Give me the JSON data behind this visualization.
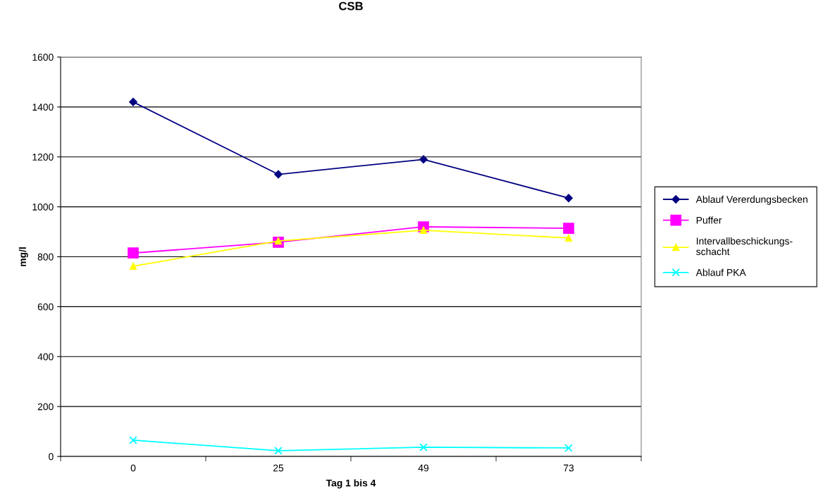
{
  "chart_data": {
    "type": "line",
    "title": "CSB",
    "xlabel": "Tag 1 bis 4",
    "ylabel": "mg/l",
    "categories": [
      "0",
      "25",
      "49",
      "73"
    ],
    "series": [
      {
        "name": "Ablauf Vererdungsbecken",
        "color": "#000080",
        "marker": "diamond",
        "values": [
          1420,
          1130,
          1190,
          1035
        ]
      },
      {
        "name": "Puffer",
        "color": "#ff00ff",
        "marker": "square",
        "values": [
          815,
          858,
          920,
          914
        ]
      },
      {
        "name": "Intervallbeschickungs-\nschacht",
        "color": "#ffff00",
        "marker": "triangle",
        "values": [
          762,
          863,
          906,
          875
        ]
      },
      {
        "name": "Ablauf PKA",
        "color": "#00ffff",
        "marker": "cross",
        "values": [
          65,
          23,
          37,
          34
        ]
      }
    ],
    "ylim": [
      0,
      1600
    ],
    "yticks": [
      0,
      200,
      400,
      600,
      800,
      1000,
      1200,
      1400,
      1600
    ],
    "grid": "y",
    "legend": "right",
    "line_style": "solid"
  }
}
